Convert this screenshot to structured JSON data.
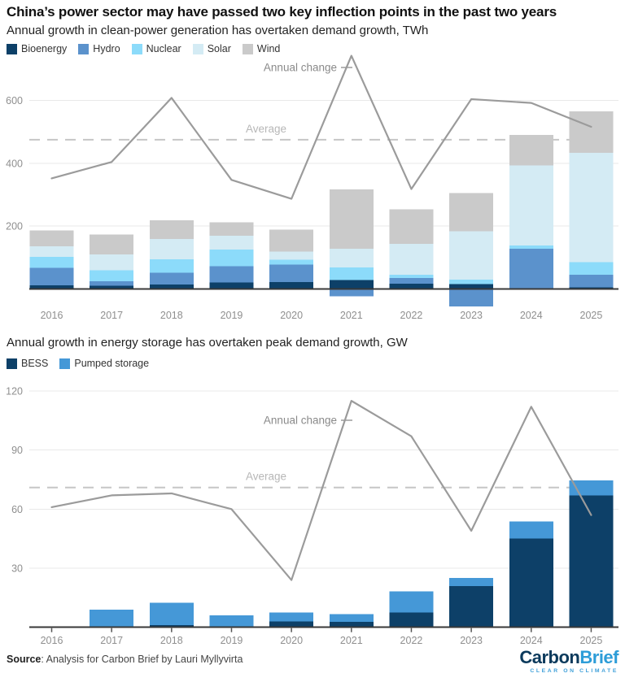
{
  "title": "China’s power sector may have passed two key inflection points in the past two years",
  "chart_data": [
    {
      "type": "bar",
      "subtitle": "Annual growth in clean-power generation has overtaken demand growth, TWh",
      "unit": "TWh",
      "categories": [
        "2016",
        "2017",
        "2018",
        "2019",
        "2020",
        "2021",
        "2022",
        "2023",
        "2024",
        "2025"
      ],
      "series": [
        {
          "name": "Bioenergy",
          "color": "#0d4068",
          "values": [
            11,
            10,
            14,
            21,
            22,
            28,
            17,
            15,
            0,
            5
          ]
        },
        {
          "name": "Hydro",
          "color": "#5b92cc",
          "values": [
            56,
            14,
            38,
            52,
            56,
            -23,
            18,
            -55,
            128,
            40
          ]
        },
        {
          "name": "Nuclear",
          "color": "#8cdbfa",
          "values": [
            35,
            36,
            43,
            53,
            15,
            41,
            10,
            15,
            10,
            40
          ]
        },
        {
          "name": "Solar",
          "color": "#d4ebf4",
          "values": [
            34,
            50,
            64,
            43,
            26,
            59,
            99,
            153,
            255,
            348
          ]
        },
        {
          "name": "Wind",
          "color": "#cacaca",
          "values": [
            50,
            63,
            60,
            43,
            70,
            189,
            109,
            122,
            97,
            132
          ]
        }
      ],
      "line": {
        "name": "Annual change",
        "color": "#9b9b9b",
        "values": [
          352,
          404,
          608,
          347,
          287,
          742,
          318,
          604,
          592,
          516
        ]
      },
      "average": {
        "label": "Average",
        "value": 475
      },
      "yticks": [
        200,
        400,
        600
      ],
      "ylim": [
        -75,
        760
      ],
      "grid": true,
      "legend_position": "top-left"
    },
    {
      "type": "bar",
      "subtitle": "Annual growth in energy storage has overtaken peak demand growth, GW",
      "unit": "GW",
      "categories": [
        "2016",
        "2017",
        "2018",
        "2019",
        "2020",
        "2021",
        "2022",
        "2023",
        "2024",
        "2025"
      ],
      "series": [
        {
          "name": "BESS",
          "color": "#0d4068",
          "values": [
            0,
            0,
            1.2,
            0,
            3,
            2.8,
            7.6,
            21,
            45,
            67
          ]
        },
        {
          "name": "Pumped storage",
          "color": "#4598d7",
          "values": [
            0,
            9,
            11.2,
            6,
            4.6,
            3.9,
            10.7,
            4,
            8.7,
            7.5
          ]
        }
      ],
      "line": {
        "name": "Annual change",
        "color": "#9b9b9b",
        "values": [
          61,
          67,
          68,
          60,
          24,
          115,
          97,
          49,
          112,
          57
        ]
      },
      "average": {
        "label": "Average",
        "value": 71
      },
      "yticks": [
        30,
        60,
        90,
        120
      ],
      "ylim": [
        0,
        124
      ],
      "grid": true,
      "legend_position": "top-left"
    }
  ],
  "source": {
    "label": "Source",
    "text": ": Analysis for Carbon Brief by Lauri Myllyvirta"
  },
  "logo": {
    "word1": "Carbon",
    "word2": "Brief",
    "tagline": "CLEAR ON CLIMATE"
  }
}
